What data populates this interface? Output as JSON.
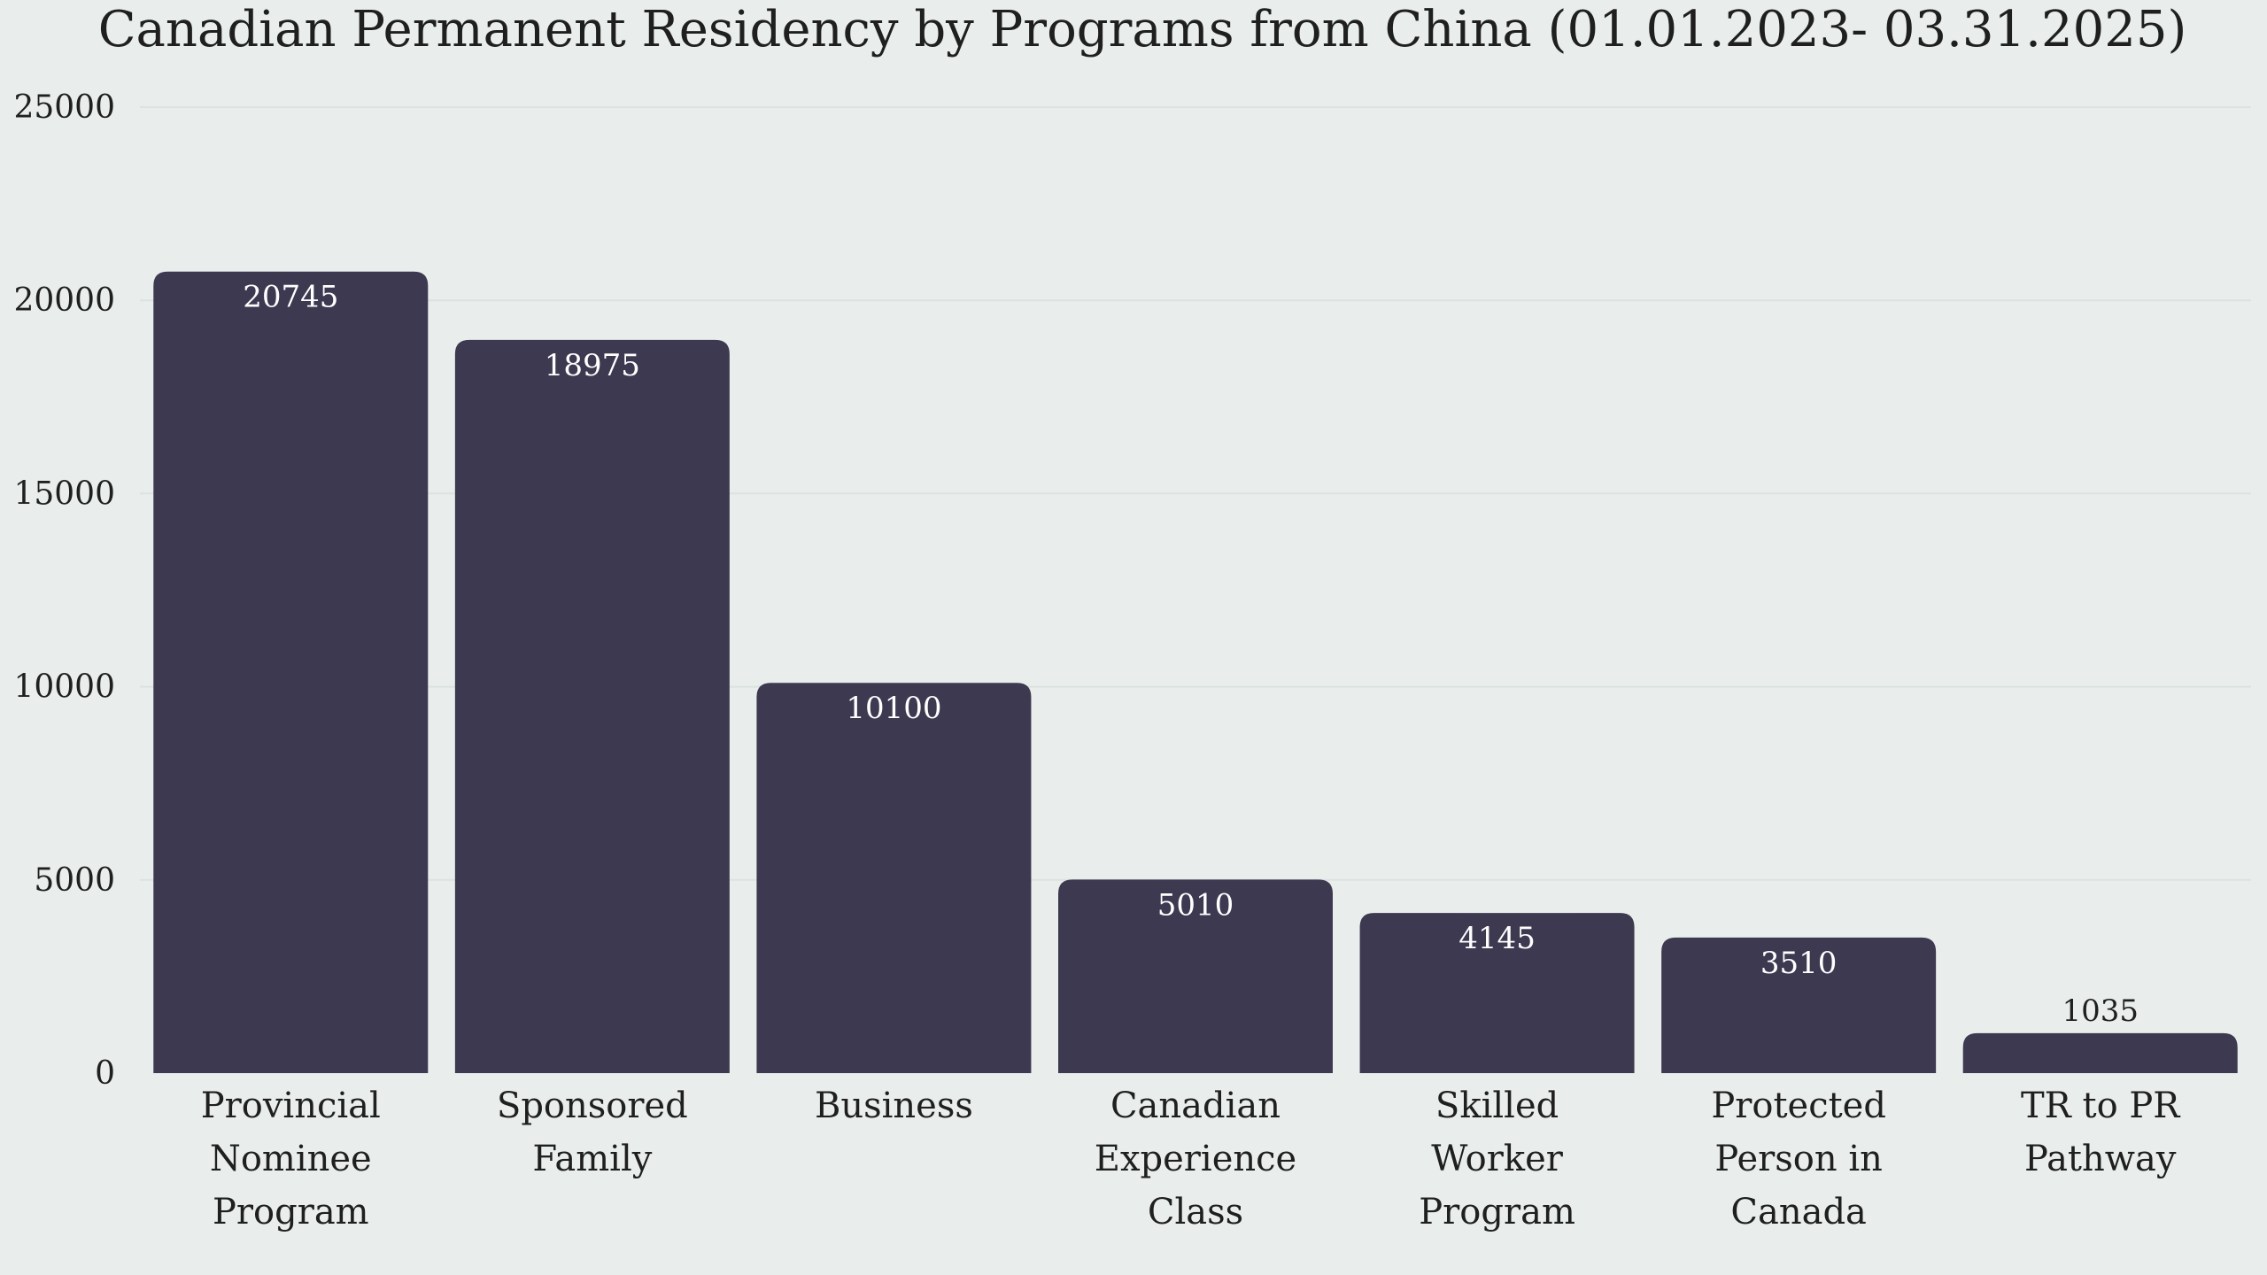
{
  "chart_data": {
    "type": "bar",
    "title": "Canadian Permanent Residency by Programs from China (01.01.2023- 03.31.2025)",
    "xlabel": "",
    "ylabel": "",
    "categories": [
      "Provincial Nominee Program",
      "Sponsored Family",
      "Business",
      "Canadian Experience Class",
      "Skilled Worker Program",
      "Protected Person in Canada",
      "TR to PR Pathway"
    ],
    "category_lines": [
      [
        "Provincial",
        "Nominee",
        "Program"
      ],
      [
        "Sponsored",
        "Family"
      ],
      [
        "Business"
      ],
      [
        "Canadian",
        "Experience",
        "Class"
      ],
      [
        "Skilled",
        "Worker",
        "Program"
      ],
      [
        "Protected",
        "Person in",
        "Canada"
      ],
      [
        "TR to PR",
        "Pathway"
      ]
    ],
    "values": [
      20745,
      18975,
      10100,
      5010,
      4145,
      3510,
      1035
    ],
    "ylim": [
      0,
      25000
    ],
    "yticks": [
      "0",
      "5000",
      "10000",
      "15000",
      "20000",
      "25000"
    ],
    "grid": true,
    "legend": "none",
    "colors": {
      "bar": "#3D3950",
      "label_inside": "#FFFFFF",
      "label_outside": "#1F1F1F",
      "grid": "#DCE2E0",
      "background": "#E9EEEC"
    }
  }
}
